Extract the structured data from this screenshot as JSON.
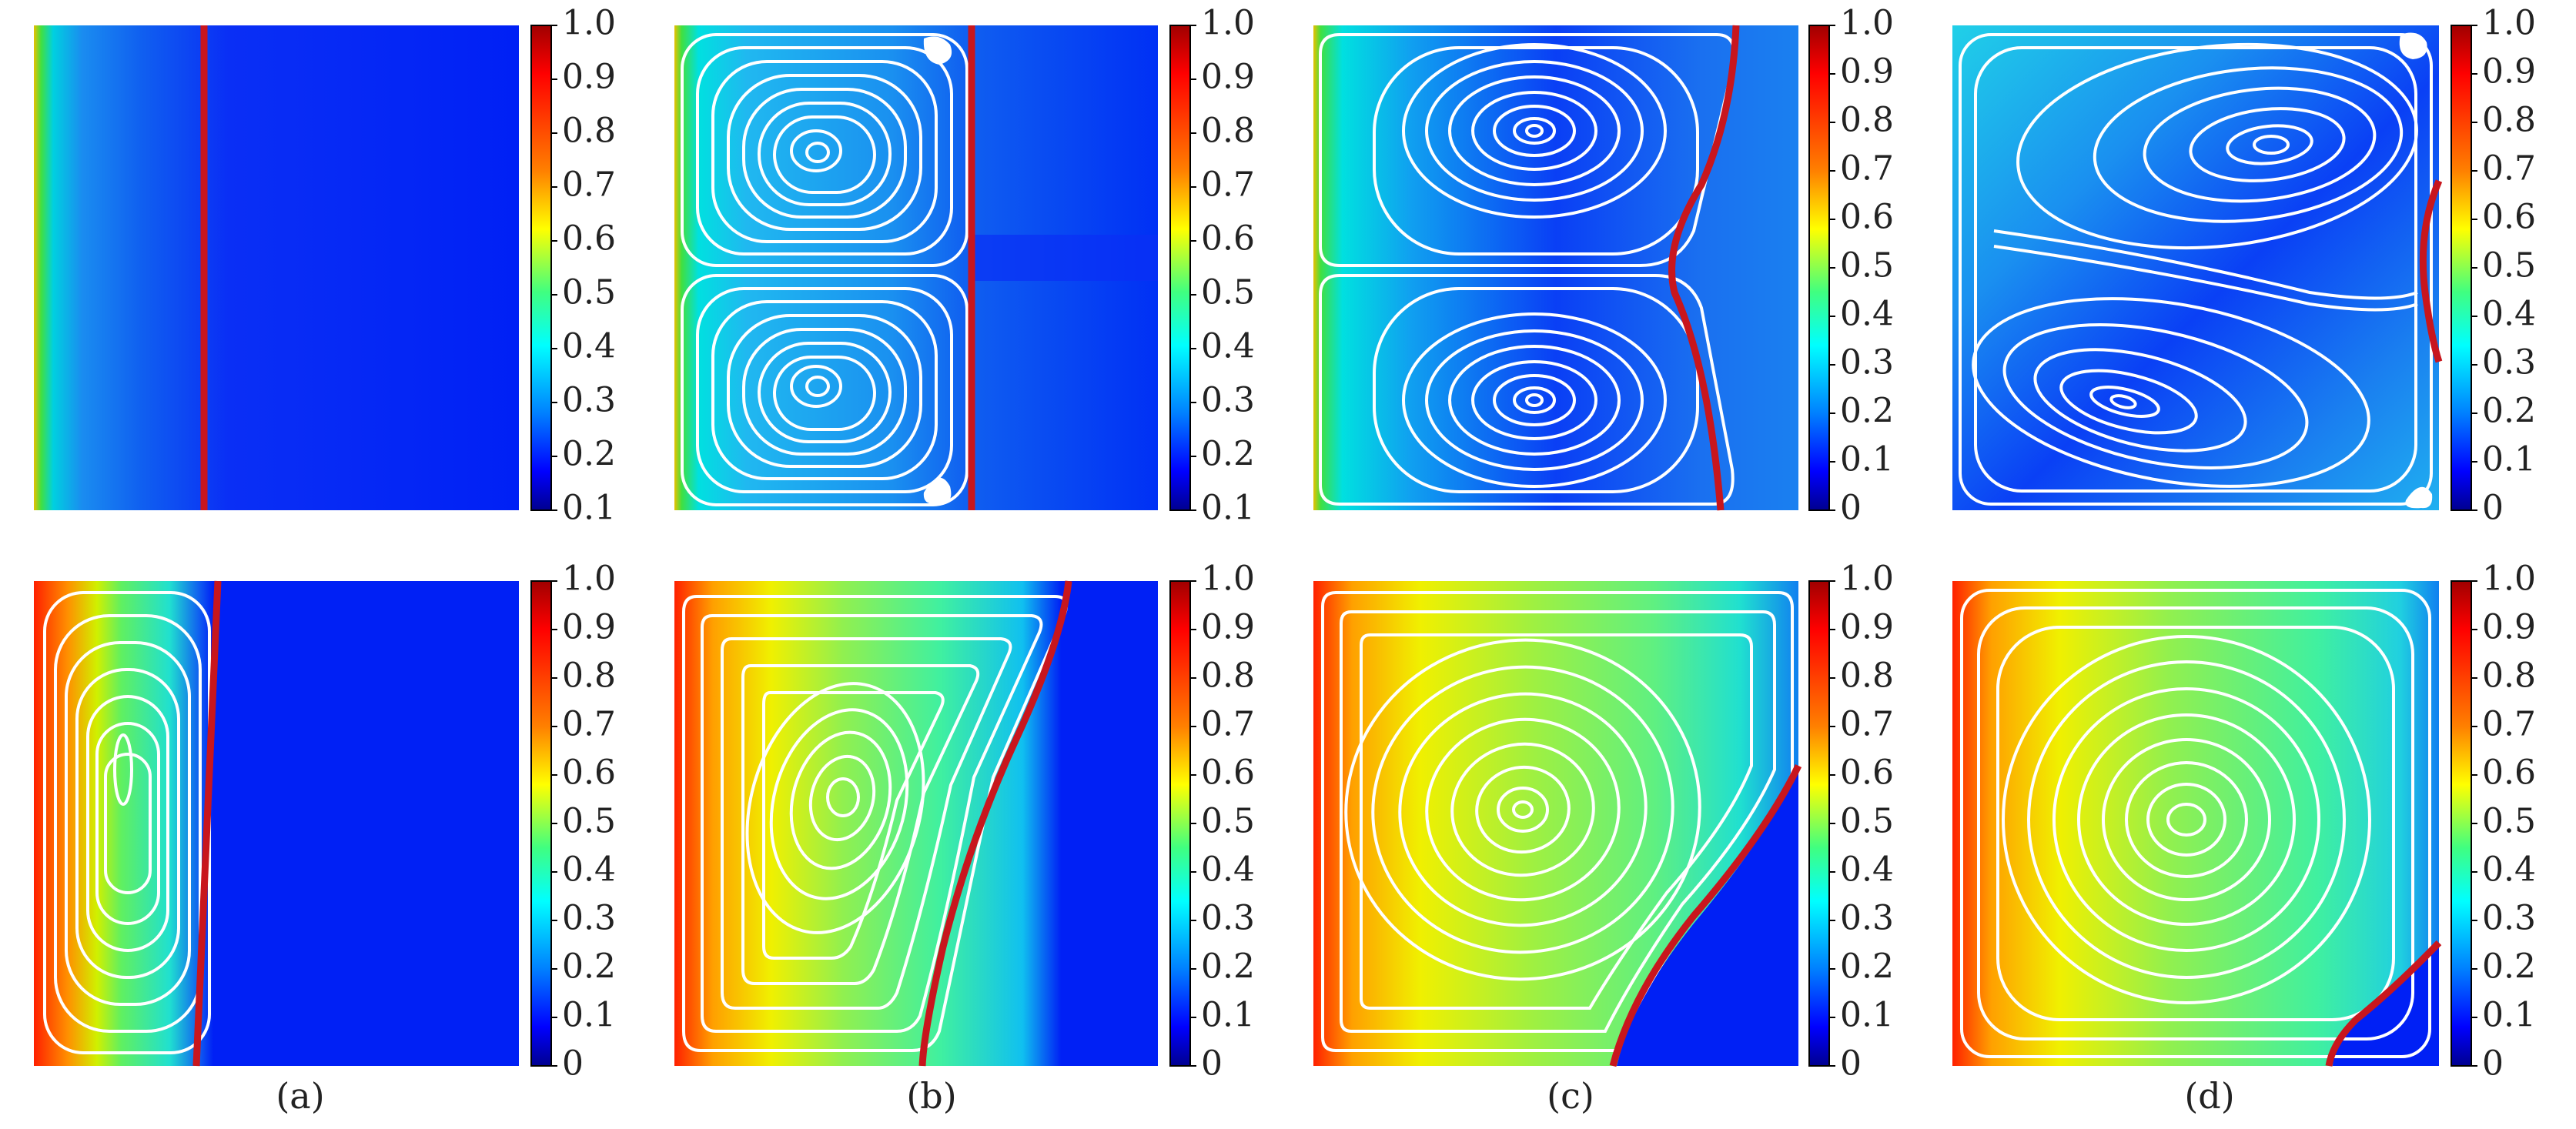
{
  "colormap": {
    "name": "jet",
    "stops": [
      "#00008f",
      "#0000ff",
      "#0080ff",
      "#00ffff",
      "#40ff80",
      "#ffff00",
      "#ff8000",
      "#ff0000",
      "#a00000"
    ]
  },
  "colors": {
    "interface": "#c8161d",
    "streamline": "#ffffff",
    "frame": "#000000"
  },
  "columns": [
    {
      "label": "(a)",
      "top": {
        "ticks": [
          "1.0",
          "0.9",
          "0.8",
          "0.7",
          "0.6",
          "0.5",
          "0.4",
          "0.3",
          "0.2",
          "0.1"
        ],
        "tick_values": [
          1.0,
          0.9,
          0.8,
          0.7,
          0.6,
          0.5,
          0.4,
          0.3,
          0.2,
          0.1
        ],
        "range": [
          0.1,
          1.0
        ]
      },
      "bottom": {
        "ticks": [
          "1.0",
          "0.9",
          "0.8",
          "0.7",
          "0.6",
          "0.5",
          "0.4",
          "0.3",
          "0.2",
          "0.1",
          "0"
        ],
        "tick_values": [
          1.0,
          0.9,
          0.8,
          0.7,
          0.6,
          0.5,
          0.4,
          0.3,
          0.2,
          0.1,
          0
        ],
        "range": [
          0,
          1.0
        ]
      }
    },
    {
      "label": "(b)",
      "top": {
        "ticks": [
          "1.0",
          "0.9",
          "0.8",
          "0.7",
          "0.6",
          "0.5",
          "0.4",
          "0.3",
          "0.2",
          "0.1"
        ],
        "tick_values": [
          1.0,
          0.9,
          0.8,
          0.7,
          0.6,
          0.5,
          0.4,
          0.3,
          0.2,
          0.1
        ],
        "range": [
          0.1,
          1.0
        ]
      },
      "bottom": {
        "ticks": [
          "1.0",
          "0.9",
          "0.8",
          "0.7",
          "0.6",
          "0.5",
          "0.4",
          "0.3",
          "0.2",
          "0.1",
          "0"
        ],
        "tick_values": [
          1.0,
          0.9,
          0.8,
          0.7,
          0.6,
          0.5,
          0.4,
          0.3,
          0.2,
          0.1,
          0
        ],
        "range": [
          0,
          1.0
        ]
      }
    },
    {
      "label": "(c)",
      "top": {
        "ticks": [
          "1.0",
          "0.9",
          "0.8",
          "0.7",
          "0.6",
          "0.5",
          "0.4",
          "0.3",
          "0.2",
          "0.1",
          "0"
        ],
        "tick_values": [
          1.0,
          0.9,
          0.8,
          0.7,
          0.6,
          0.5,
          0.4,
          0.3,
          0.2,
          0.1,
          0
        ],
        "range": [
          0,
          1.0
        ]
      },
      "bottom": {
        "ticks": [
          "1.0",
          "0.9",
          "0.8",
          "0.7",
          "0.6",
          "0.5",
          "0.4",
          "0.3",
          "0.2",
          "0.1",
          "0"
        ],
        "tick_values": [
          1.0,
          0.9,
          0.8,
          0.7,
          0.6,
          0.5,
          0.4,
          0.3,
          0.2,
          0.1,
          0
        ],
        "range": [
          0,
          1.0
        ]
      }
    },
    {
      "label": "(d)",
      "top": {
        "ticks": [
          "1.0",
          "0.9",
          "0.8",
          "0.7",
          "0.6",
          "0.5",
          "0.4",
          "0.3",
          "0.2",
          "0.1",
          "0"
        ],
        "tick_values": [
          1.0,
          0.9,
          0.8,
          0.7,
          0.6,
          0.5,
          0.4,
          0.3,
          0.2,
          0.1,
          0
        ],
        "range": [
          0,
          1.0
        ]
      },
      "bottom": {
        "ticks": [
          "1.0",
          "0.9",
          "0.8",
          "0.7",
          "0.6",
          "0.5",
          "0.4",
          "0.3",
          "0.2",
          "0.1",
          "0"
        ],
        "tick_values": [
          1.0,
          0.9,
          0.8,
          0.7,
          0.6,
          0.5,
          0.4,
          0.3,
          0.2,
          0.1,
          0
        ],
        "range": [
          0,
          1.0
        ]
      }
    }
  ]
}
